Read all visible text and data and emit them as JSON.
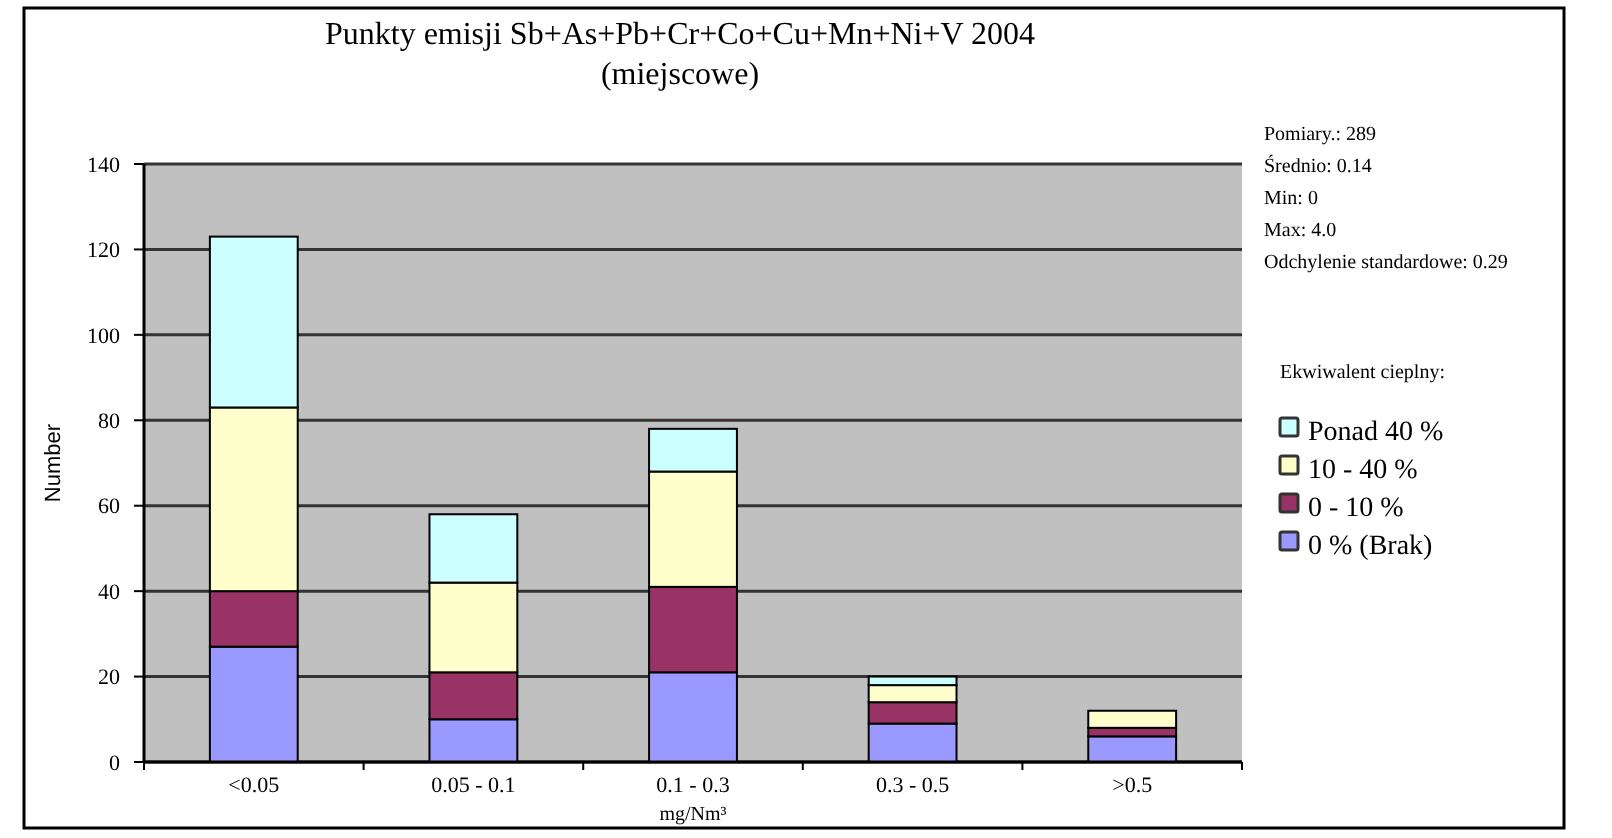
{
  "chart_data": {
    "type": "bar",
    "title": "Punkty emisji  Sb+As+Pb+Cr+Co+Cu+Mn+Ni+V 2004",
    "subtitle": "(miejscowe)",
    "xlabel": "mg/Nm³",
    "ylabel": "Number",
    "legend_title": "Ekwiwalent cieplny:",
    "categories": [
      "<0.05",
      "0.05 - 0.1",
      "0.1 - 0.3",
      "0.3 - 0.5",
      ">0.5"
    ],
    "series": [
      {
        "name": "0 % (Brak)",
        "color": "#9999ff",
        "values": [
          27,
          10,
          21,
          9,
          6
        ]
      },
      {
        "name": "0 - 10 %",
        "color": "#993366",
        "values": [
          13,
          11,
          20,
          5,
          2
        ]
      },
      {
        "name": "10 - 40 %",
        "color": "#ffffcc",
        "values": [
          43,
          21,
          27,
          4,
          4
        ]
      },
      {
        "name": "Ponad 40 %",
        "color": "#ccffff",
        "values": [
          40,
          16,
          10,
          2,
          0
        ]
      }
    ],
    "stacked": true,
    "ylim": [
      0,
      140
    ],
    "yticks": [
      0,
      20,
      40,
      60,
      80,
      100,
      120,
      140
    ],
    "grid": "y",
    "legend": "right",
    "annotations": [
      "Pomiary.: 289",
      "Średnio: 0.14",
      "Min: 0",
      "Max: 4.0",
      "Odchylenie standardowe: 0.29"
    ]
  }
}
